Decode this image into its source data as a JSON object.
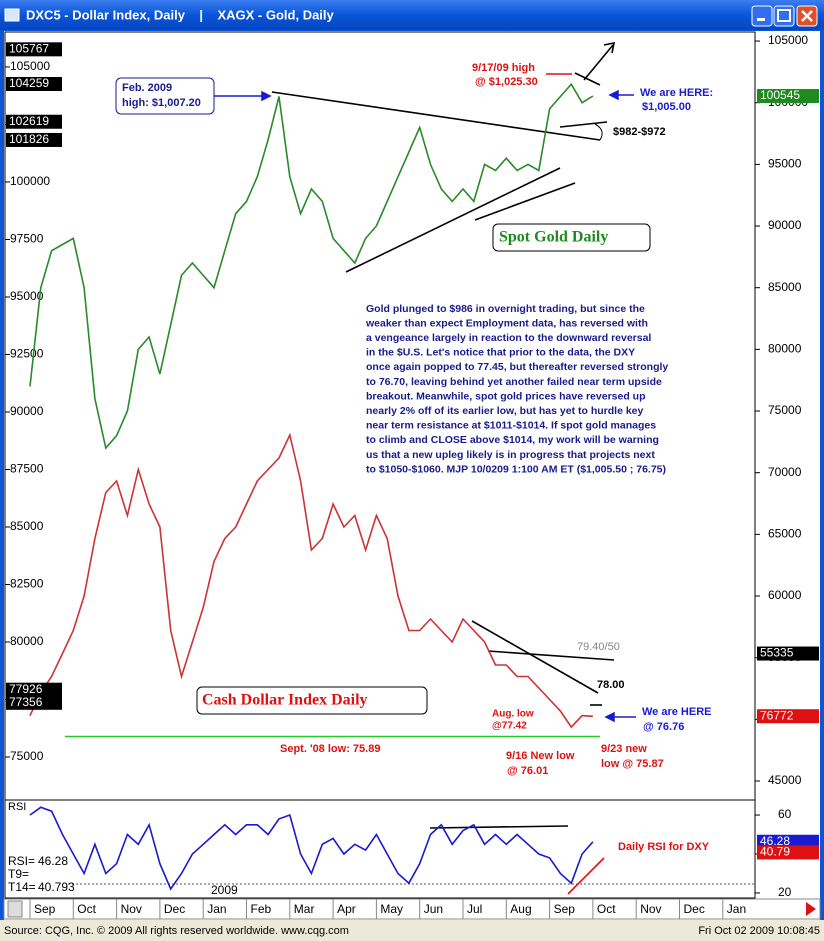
{
  "window": {
    "title": "DXC5 - Dollar Index, Daily    |    XAGX - Gold, Daily",
    "footer_left": "Source: CQG, Inc. © 2009 All rights reserved worldwide. www.cqg.com",
    "footer_right": "Fri Oct 02 2009 10:08:45"
  },
  "chart_data": {
    "type": "line",
    "categories": [
      "Sep",
      null,
      null,
      null,
      "Oct",
      null,
      null,
      null,
      "Nov",
      null,
      null,
      null,
      "Dec",
      null,
      null,
      null,
      "Jan",
      null,
      null,
      null,
      "Feb",
      null,
      null,
      null,
      "Mar",
      null,
      null,
      null,
      "Apr",
      null,
      null,
      null,
      "May",
      null,
      null,
      null,
      "Jun",
      null,
      null,
      null,
      "Jul",
      null,
      null,
      null,
      "Aug",
      null,
      null,
      null,
      "Sep",
      null,
      null,
      null,
      "Oct",
      null,
      null,
      null,
      "Nov",
      null,
      null,
      null,
      "Dec",
      null,
      null,
      null,
      "Jan",
      null,
      null,
      null
    ],
    "series": [
      {
        "name": "DXC5 - Dollar Index",
        "color": "#cc3333",
        "axis": "y",
        "values": [
          76800,
          77800,
          78500,
          79500,
          80500,
          82000,
          84500,
          86500,
          87000,
          85500,
          87500,
          86000,
          85000,
          80500,
          78500,
          80000,
          81500,
          83500,
          84500,
          85000,
          86000,
          87000,
          87500,
          88000,
          89000,
          87000,
          84000,
          84500,
          86000,
          85000,
          85500,
          84000,
          85500,
          84500,
          82000,
          80500,
          80500,
          81000,
          80500,
          80000,
          81000,
          80500,
          80000,
          79000,
          79000,
          78500,
          78500,
          78000,
          77500,
          77000,
          76300,
          76800,
          76770,
          null,
          null,
          null,
          null,
          null,
          null,
          null,
          null,
          null,
          null,
          null,
          null,
          null,
          null,
          null
        ]
      },
      {
        "name": "XAGX - Gold",
        "color": "#2a8a2a",
        "axis": "y2",
        "values": [
          77000,
          85000,
          88000,
          88500,
          89000,
          85000,
          76000,
          72000,
          73000,
          75000,
          80000,
          81000,
          78000,
          82000,
          86000,
          87000,
          86000,
          85000,
          88000,
          91000,
          92000,
          94000,
          97000,
          100500,
          94000,
          91000,
          93000,
          92000,
          89000,
          88000,
          87000,
          89000,
          90000,
          92000,
          94000,
          96000,
          98000,
          95000,
          93000,
          92000,
          93000,
          92000,
          95000,
          94500,
          95500,
          94500,
          95000,
          94500,
          99500,
          100500,
          101500,
          100000,
          100545,
          null,
          null,
          null,
          null,
          null,
          null,
          null,
          null,
          null,
          null,
          null,
          null,
          null,
          null,
          null
        ]
      }
    ],
    "ylim": [
      73130,
      106390
    ],
    "yticks": [
      75000,
      77500,
      80000,
      82500,
      85000,
      87500,
      90000,
      92500,
      95000,
      97500,
      100000,
      102500,
      105000
    ],
    "y2lim": [
      43460,
      105490
    ],
    "y2ticks": [
      45000,
      50000,
      55000,
      60000,
      65000,
      70000,
      75000,
      80000,
      85000,
      90000,
      95000,
      100000,
      105000
    ],
    "sept08_low_line": {
      "value": 75890,
      "color": "#22cc22"
    },
    "left_markers": [
      {
        "value": 105767,
        "axis": "y",
        "color": "#000000"
      },
      {
        "value": 104259,
        "axis": "y",
        "color": "#000000"
      },
      {
        "value": 102619,
        "axis": "y",
        "color": "#000000"
      },
      {
        "value": 101826,
        "axis": "y",
        "color": "#000000"
      },
      {
        "value": 77926,
        "axis": "y",
        "color": "#000000"
      },
      {
        "value": 77356,
        "axis": "y",
        "color": "#000000"
      }
    ],
    "right_markers": [
      {
        "value": 100545,
        "axis": "y2",
        "color": "#1f8a1f"
      },
      {
        "value": 55335,
        "axis": "y2",
        "color": "#000000"
      },
      {
        "value": 76772,
        "axis": "y",
        "color": "#dd1111"
      }
    ],
    "annotations": {
      "feb_high": [
        "Feb. 2009",
        "high: $1,007.20"
      ],
      "sep_high": [
        "9/17/09 high",
        "@ $1,025.30"
      ],
      "gold_here": [
        "We are HERE:",
        "$1,005.00"
      ],
      "gold_range": "$982-$972",
      "gold_title": "Spot Gold Daily",
      "dx_level1": "79.40/50",
      "dx_level2": "78.00",
      "dx_title": "Cash Dollar Index Daily",
      "aug_low": [
        "Aug. low",
        "@77.42"
      ],
      "dx_here": [
        "We are HERE",
        "@ 76.76"
      ],
      "sept08_low": "Sept. '08 low: 75.89",
      "new_low_916": [
        "9/16 New low",
        "@ 76.01"
      ],
      "new_low_923": [
        "9/23 new",
        "low @ 75.87"
      ],
      "rsi_note": "Daily RSI for DXY",
      "year": "2009"
    },
    "commentary": [
      "Gold plunged to $986  in overnight trading, but since the",
      "weaker than expect Employment data, has reversed with",
      "a vengeance largely in reaction to the downward reversal",
      "in the $U.S. Let's notice that prior to the data, the DXY",
      "once again popped to 77.45, but thereafter reversed strongly",
      "to 76.70, leaving behind yet another failed near term upside",
      "breakout. Meanwhile, spot gold prices have reversed up",
      "nearly 2% off of its earlier low, but has yet to hurdle key",
      "near term resistance at $1011-$1014. If spot gold manages",
      "to climb and CLOSE above $1014, my work will be warning",
      "us that a new upleg likely is in progress that projects next",
      "to $1050-$1060. MJP  10/0209 1:100 AM ET ($1,005.50 ; 76.75)"
    ],
    "rsi": {
      "label": "RSI",
      "color": "#1a1ad0",
      "values": [
        60,
        64,
        62,
        50,
        40,
        30,
        45,
        30,
        35,
        50,
        45,
        55,
        35,
        22,
        30,
        40,
        45,
        50,
        55,
        50,
        55,
        55,
        50,
        58,
        60,
        40,
        30,
        45,
        48,
        40,
        45,
        42,
        50,
        40,
        30,
        25,
        35,
        50,
        55,
        45,
        52,
        55,
        45,
        50,
        45,
        50,
        45,
        40,
        38,
        30,
        25,
        40,
        46.28,
        null,
        null,
        null,
        null,
        null,
        null,
        null,
        null,
        null,
        null,
        null,
        null,
        null,
        null,
        null
      ],
      "ylim": [
        17.4,
        66.7
      ],
      "yticks": [
        60,
        40,
        20
      ],
      "readout": [
        [
          "RSI=",
          46.28
        ],
        [
          "T9="
        ],
        [
          "T14=",
          40.793
        ]
      ],
      "right_markers": [
        {
          "value": 46.28,
          "color": "#1a1ad0"
        },
        {
          "value": 40.79,
          "color": "#dd1111"
        }
      ]
    }
  }
}
